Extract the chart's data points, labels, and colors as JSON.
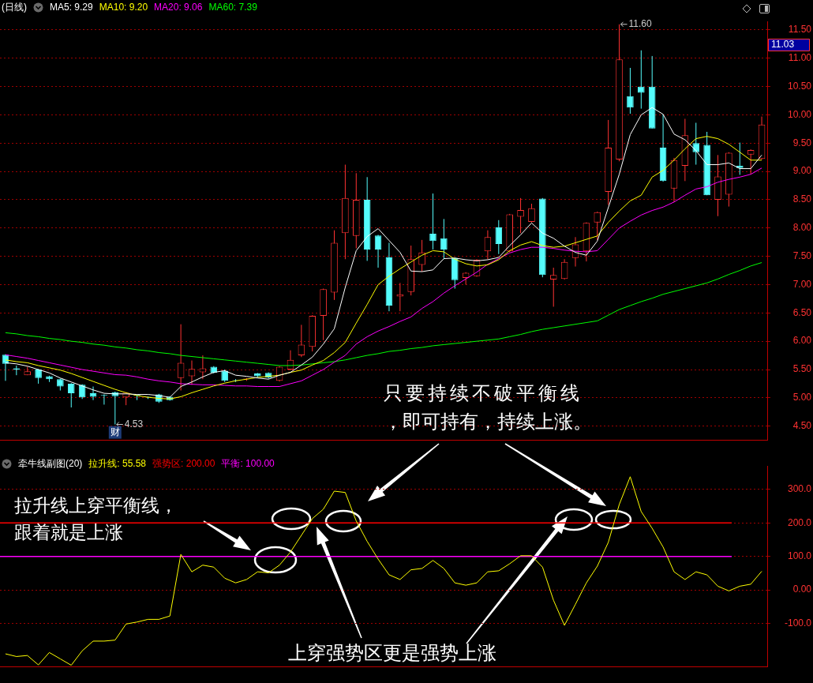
{
  "chart_data": [
    {
      "type": "candlestick",
      "title": "(日线)",
      "categories": [
        null,
        null,
        null,
        null,
        null,
        null,
        null,
        null,
        null,
        null,
        null,
        null,
        null,
        null,
        null,
        null,
        null,
        null,
        null,
        null,
        null,
        null,
        null,
        null,
        null,
        null,
        null,
        null,
        null,
        null,
        null,
        null,
        null,
        null,
        null,
        null,
        null,
        null,
        null,
        null,
        null,
        null,
        null,
        null,
        null,
        null,
        null,
        null,
        null,
        null,
        null,
        null,
        null,
        null,
        null,
        null,
        null,
        null,
        null,
        null,
        null,
        null,
        null,
        null,
        null,
        null,
        null,
        null,
        null,
        null
      ],
      "ohlc": [
        [
          5.76,
          5.77,
          5.3,
          5.6
        ],
        [
          5.52,
          5.57,
          5.4,
          5.5
        ],
        [
          5.4,
          5.55,
          5.4,
          5.47
        ],
        [
          5.5,
          5.51,
          5.25,
          5.35
        ],
        [
          5.38,
          5.39,
          5.28,
          5.33
        ],
        [
          5.33,
          5.34,
          5.13,
          5.2
        ],
        [
          5.25,
          5.26,
          4.83,
          5.08
        ],
        [
          5.23,
          5.24,
          4.98,
          5.01
        ],
        [
          5.08,
          5.2,
          4.96,
          5.02
        ],
        [
          5.05,
          5.06,
          4.88,
          5.04
        ],
        [
          5.1,
          5.11,
          4.53,
          5.03
        ],
        [
          5.01,
          5.1,
          4.87,
          5.09
        ],
        [
          5.05,
          5.05,
          4.96,
          5.04
        ],
        [
          5.02,
          5.02,
          4.98,
          5.01
        ],
        [
          5.06,
          5.07,
          4.91,
          4.93
        ],
        [
          5.02,
          5.03,
          4.95,
          4.96
        ],
        [
          5.35,
          6.3,
          5.13,
          5.62
        ],
        [
          5.38,
          5.66,
          5.23,
          5.51
        ],
        [
          5.45,
          5.75,
          5.33,
          5.52
        ],
        [
          5.55,
          5.56,
          5.43,
          5.44
        ],
        [
          5.48,
          5.5,
          5.28,
          5.3
        ],
        [
          5.32,
          5.33,
          5.28,
          5.31
        ],
        [
          5.33,
          5.35,
          5.3,
          5.34
        ],
        [
          5.43,
          5.44,
          5.36,
          5.38
        ],
        [
          5.44,
          5.45,
          5.34,
          5.36
        ],
        [
          5.3,
          5.56,
          5.29,
          5.55
        ],
        [
          5.5,
          5.84,
          5.49,
          5.67
        ],
        [
          5.75,
          6.29,
          5.72,
          5.94
        ],
        [
          5.9,
          6.46,
          5.82,
          6.45
        ],
        [
          6.45,
          6.93,
          6.02,
          6.92
        ],
        [
          6.86,
          7.96,
          6.73,
          7.74
        ],
        [
          7.91,
          9.12,
          7.45,
          8.53
        ],
        [
          7.86,
          8.97,
          7.64,
          8.5
        ],
        [
          8.5,
          8.9,
          7.42,
          7.62
        ],
        [
          7.87,
          7.88,
          7.3,
          7.62
        ],
        [
          7.48,
          7.74,
          6.53,
          6.63
        ],
        [
          6.79,
          7.03,
          6.53,
          6.83
        ],
        [
          6.87,
          7.69,
          6.81,
          7.45
        ],
        [
          7.35,
          7.79,
          7.23,
          7.57
        ],
        [
          7.9,
          8.61,
          7.62,
          7.77
        ],
        [
          7.82,
          8.16,
          7.45,
          7.62
        ],
        [
          7.47,
          7.48,
          6.93,
          7.08
        ],
        [
          7.12,
          7.22,
          7.0,
          7.21
        ],
        [
          7.15,
          7.45,
          7.14,
          7.44
        ],
        [
          7.59,
          7.96,
          7.45,
          7.84
        ],
        [
          8.01,
          8.14,
          7.54,
          7.72
        ],
        [
          7.59,
          8.25,
          7.57,
          8.24
        ],
        [
          8.2,
          8.53,
          7.91,
          8.32
        ],
        [
          8.11,
          8.43,
          8.1,
          8.35
        ],
        [
          8.52,
          8.53,
          7.13,
          7.17
        ],
        [
          7.09,
          7.3,
          6.61,
          7.17
        ],
        [
          7.1,
          7.45,
          7.09,
          7.4
        ],
        [
          7.47,
          7.84,
          7.32,
          7.71
        ],
        [
          7.59,
          8.1,
          7.41,
          8.09
        ],
        [
          8.1,
          8.29,
          7.79,
          8.28
        ],
        [
          8.64,
          9.91,
          8.41,
          9.42
        ],
        [
          9.21,
          11.6,
          9.18,
          10.98
        ],
        [
          10.33,
          10.83,
          10.02,
          10.13
        ],
        [
          10.5,
          11.14,
          10.11,
          10.39
        ],
        [
          10.5,
          11.04,
          9.76,
          9.76
        ],
        [
          9.42,
          10.01,
          8.82,
          8.83
        ],
        [
          8.7,
          9.24,
          8.46,
          9.2
        ],
        [
          9.1,
          9.93,
          8.83,
          9.64
        ],
        [
          9.5,
          9.86,
          9.12,
          9.34
        ],
        [
          9.47,
          9.7,
          8.58,
          8.58
        ],
        [
          8.5,
          9.29,
          8.21,
          8.91
        ],
        [
          8.59,
          9.34,
          8.38,
          9.33
        ],
        [
          9.1,
          9.51,
          8.94,
          9.06
        ],
        [
          9.3,
          9.39,
          8.95,
          9.38
        ],
        [
          9.22,
          9.97,
          9.21,
          9.83
        ]
      ],
      "colors": [
        "#54fcfc",
        "#54fcfc",
        "#ff3232",
        "#54fcfc",
        "#54fcfc",
        "#54fcfc",
        "#54fcfc",
        "#54fcfc",
        "#54fcfc",
        "#54fcfc",
        "#54fcfc",
        "#ff3232",
        "#54fcfc",
        "#54fcfc",
        "#54fcfc",
        "#54fcfc",
        "#ff3232",
        "#ff3232",
        "#ff3232",
        "#54fcfc",
        "#54fcfc",
        "#54fcfc",
        "#ff3232",
        "#54fcfc",
        "#54fcfc",
        "#ff3232",
        "#ff3232",
        "#ff3232",
        "#ff3232",
        "#ff3232",
        "#ff3232",
        "#ff3232",
        "#ff3232",
        "#54fcfc",
        "#54fcfc",
        "#54fcfc",
        "#ff3232",
        "#ff3232",
        "#ff3232",
        "#54fcfc",
        "#54fcfc",
        "#54fcfc",
        "#ff3232",
        "#ff3232",
        "#ff3232",
        "#54fcfc",
        "#ff3232",
        "#ff3232",
        "#ff3232",
        "#54fcfc",
        "#ff3232",
        "#ff3232",
        "#ff3232",
        "#ff3232",
        "#ff3232",
        "#ff3232",
        "#ff3232",
        "#54fcfc",
        "#54fcfc",
        "#54fcfc",
        "#54fcfc",
        "#ff3232",
        "#ff3232",
        "#54fcfc",
        "#54fcfc",
        "#ff3232",
        "#ff3232",
        "#54fcfc",
        "#ff3232",
        "#ff3232"
      ],
      "series": [
        {
          "name": "MA5: 9.29",
          "type": "line",
          "color": "#ffffff",
          "values": [
            5.62,
            5.6,
            5.56,
            5.5,
            5.44,
            5.35,
            5.28,
            5.21,
            5.14,
            5.08,
            5.07,
            5.07,
            5.06,
            5.06,
            5.04,
            5.01,
            5.2,
            5.28,
            5.37,
            5.45,
            5.48,
            5.4,
            5.38,
            5.35,
            5.33,
            5.4,
            5.45,
            5.58,
            5.72,
            5.95,
            6.22,
            6.95,
            7.6,
            7.85,
            7.99,
            7.78,
            7.57,
            7.24,
            7.23,
            7.26,
            7.46,
            7.47,
            7.44,
            7.42,
            7.44,
            7.48,
            7.69,
            7.88,
            8.09,
            7.91,
            7.82,
            7.68,
            7.57,
            7.52,
            7.77,
            8.36,
            8.95,
            9.65,
            10.0,
            10.13,
            10.01,
            9.66,
            9.56,
            9.37,
            9.12,
            9.12,
            9.15,
            9.05,
            9.05,
            9.29
          ]
        },
        {
          "name": "MA10: 9.20",
          "type": "line",
          "color": "#ffff00",
          "values": [
            5.67,
            5.64,
            5.62,
            5.57,
            5.53,
            5.49,
            5.43,
            5.36,
            5.29,
            5.22,
            5.15,
            5.09,
            5.04,
            5.01,
            4.99,
            4.98,
            5.02,
            5.09,
            5.15,
            5.21,
            5.26,
            5.3,
            5.33,
            5.36,
            5.38,
            5.4,
            5.45,
            5.49,
            5.58,
            5.66,
            5.8,
            5.98,
            6.32,
            6.65,
            7.0,
            7.15,
            7.28,
            7.4,
            7.52,
            7.6,
            7.58,
            7.45,
            7.37,
            7.33,
            7.35,
            7.44,
            7.6,
            7.7,
            7.76,
            7.69,
            7.66,
            7.68,
            7.74,
            7.8,
            7.86,
            8.1,
            8.3,
            8.48,
            8.58,
            8.9,
            9.02,
            9.2,
            9.4,
            9.58,
            9.62,
            9.58,
            9.48,
            9.34,
            9.2,
            9.2
          ]
        },
        {
          "name": "MA20: 9.06",
          "type": "line",
          "color": "#ff00ff",
          "values": [
            5.76,
            5.73,
            5.7,
            5.66,
            5.62,
            5.58,
            5.54,
            5.5,
            5.47,
            5.44,
            5.41,
            5.4,
            5.37,
            5.33,
            5.3,
            5.28,
            5.25,
            5.24,
            5.23,
            5.23,
            5.22,
            5.21,
            5.21,
            5.2,
            5.2,
            5.2,
            5.25,
            5.3,
            5.4,
            5.5,
            5.63,
            5.75,
            5.95,
            6.08,
            6.18,
            6.26,
            6.35,
            6.43,
            6.58,
            6.7,
            6.85,
            6.98,
            7.1,
            7.22,
            7.36,
            7.46,
            7.56,
            7.62,
            7.66,
            7.66,
            7.64,
            7.61,
            7.59,
            7.58,
            7.6,
            7.8,
            8.0,
            8.12,
            8.23,
            8.31,
            8.37,
            8.46,
            8.58,
            8.69,
            8.73,
            8.81,
            8.86,
            8.9,
            8.95,
            9.06
          ]
        },
        {
          "name": "MA60: 7.39",
          "type": "line",
          "color": "#00ff00",
          "values": [
            6.15,
            6.13,
            6.1,
            6.08,
            6.05,
            6.03,
            6.0,
            5.98,
            5.95,
            5.93,
            5.9,
            5.88,
            5.85,
            5.83,
            5.8,
            5.78,
            5.75,
            5.73,
            5.71,
            5.69,
            5.67,
            5.65,
            5.63,
            5.61,
            5.59,
            5.57,
            5.57,
            5.58,
            5.6,
            5.62,
            5.64,
            5.67,
            5.71,
            5.75,
            5.78,
            5.82,
            5.84,
            5.87,
            5.89,
            5.92,
            5.94,
            5.96,
            5.98,
            6.0,
            6.02,
            6.04,
            6.08,
            6.12,
            6.17,
            6.21,
            6.24,
            6.27,
            6.3,
            6.33,
            6.36,
            6.46,
            6.56,
            6.63,
            6.7,
            6.76,
            6.83,
            6.88,
            6.93,
            6.98,
            7.03,
            7.1,
            7.18,
            7.25,
            7.33,
            7.39
          ]
        }
      ],
      "ylim": [
        4.25,
        11.65
      ],
      "yticks": [
        {
          "value": 4.5,
          "label": "4.50"
        },
        {
          "value": 5,
          "label": "5.00"
        },
        {
          "value": 5.5,
          "label": "5.50"
        },
        {
          "value": 6,
          "label": "6.00"
        },
        {
          "value": 6.5,
          "label": "6.50"
        },
        {
          "value": 7,
          "label": "7.00"
        },
        {
          "value": 7.5,
          "label": "7.50"
        },
        {
          "value": 8,
          "label": "8.00"
        },
        {
          "value": 8.5,
          "label": "8.50"
        },
        {
          "value": 9,
          "label": "9.00"
        },
        {
          "value": 9.5,
          "label": "9.50"
        },
        {
          "value": 10,
          "label": "10.00"
        },
        {
          "value": 10.5,
          "label": "10.50"
        },
        {
          "value": 11,
          "label": "11.00"
        },
        {
          "value": 11.5,
          "label": "11.50"
        }
      ],
      "grid": "y",
      "legend": "top left",
      "marker": "none",
      "annotations": [
        "11.60",
        "4.53",
        "财",
        "11.03"
      ]
    },
    {
      "type": "line",
      "title": "牵牛线副图(20)",
      "categories": [
        null,
        null,
        null,
        null,
        null,
        null,
        null,
        null,
        null,
        null,
        null,
        null,
        null,
        null,
        null,
        null,
        null,
        null,
        null,
        null,
        null,
        null,
        null,
        null,
        null,
        null,
        null,
        null,
        null,
        null,
        null,
        null,
        null,
        null,
        null,
        null,
        null,
        null,
        null,
        null,
        null,
        null,
        null,
        null,
        null,
        null,
        null,
        null,
        null,
        null,
        null,
        null,
        null,
        null,
        null,
        null,
        null,
        null,
        null,
        null,
        null,
        null,
        null,
        null,
        null,
        null,
        null,
        null,
        null,
        null
      ],
      "series": [
        {
          "name": "拉升线: 55.58",
          "color": "#ffff00",
          "values": [
            -191,
            -199,
            -196,
            -224,
            -187,
            -206,
            -225,
            -182,
            -153,
            -153,
            -150,
            -102,
            -96,
            -88,
            -88,
            -78,
            106,
            54,
            74,
            68,
            35,
            21,
            31,
            54,
            51,
            74,
            113,
            163,
            213,
            241,
            295,
            291,
            206,
            145,
            92,
            45,
            31,
            60,
            64,
            88,
            64,
            21,
            14,
            21,
            54,
            57,
            78,
            102,
            102,
            68,
            -31,
            -106,
            -43,
            21,
            71,
            142,
            255,
            338,
            234,
            184,
            128,
            54,
            31,
            54,
            45,
            11,
            -3,
            11,
            17,
            55.58
          ]
        }
      ],
      "ref_lines": [
        {
          "axis": "y",
          "value": 200,
          "label": "强势区: 200.00",
          "color": "#ff0000"
        },
        {
          "axis": "y",
          "value": 100,
          "label": "平衡: 100.00",
          "color": "#ff00ff"
        }
      ],
      "ylim": [
        -230,
        370
      ],
      "yticks": [
        {
          "value": 300,
          "label": "300.0"
        },
        {
          "value": 200,
          "label": "200.0"
        },
        {
          "value": 100,
          "label": "100.0"
        },
        {
          "value": 0,
          "label": "0.00"
        },
        {
          "value": -100,
          "label": "-100.0"
        }
      ],
      "grid": "y",
      "legend": "top left",
      "marker": "none",
      "annotations": [
        "只要持续不破平衡线，即可持有，持续上涨。",
        "拉升线上穿平衡线，跟着就是上涨",
        "上穿强势区更是强势上涨"
      ]
    }
  ]
}
